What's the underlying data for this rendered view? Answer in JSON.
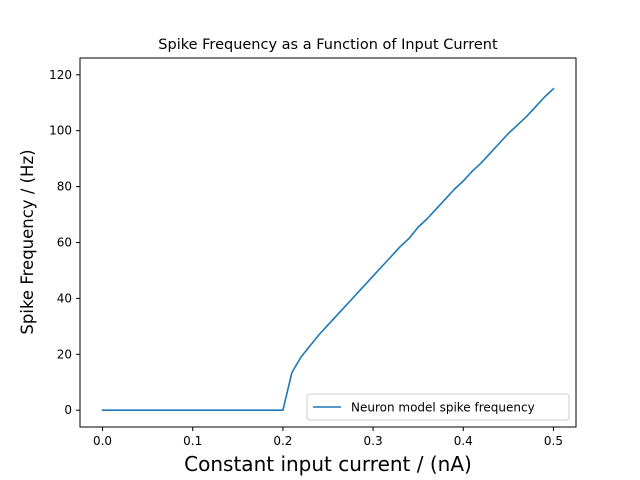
{
  "chart_data": {
    "type": "line",
    "title": "Spike Frequency as a Function of Input Current",
    "xlabel": "Constant input current / (nA)",
    "ylabel": "Spike Frequency / (Hz)",
    "xlim": [
      -0.025,
      0.525
    ],
    "ylim": [
      -6,
      126
    ],
    "xticks": [
      0.0,
      0.1,
      0.2,
      0.3,
      0.4,
      0.5
    ],
    "xtick_labels": [
      "0.0",
      "0.1",
      "0.2",
      "0.3",
      "0.4",
      "0.5"
    ],
    "yticks": [
      0,
      20,
      40,
      60,
      80,
      100,
      120
    ],
    "ytick_labels": [
      "0",
      "20",
      "40",
      "60",
      "80",
      "100",
      "120"
    ],
    "grid": false,
    "legend_position": "lower-right",
    "series": [
      {
        "name": "Neuron model spike frequency",
        "color": "#1f77b4",
        "x": [
          0.0,
          0.01,
          0.02,
          0.03,
          0.04,
          0.05,
          0.06,
          0.07,
          0.08,
          0.09,
          0.1,
          0.11,
          0.12,
          0.13,
          0.14,
          0.15,
          0.16,
          0.17,
          0.18,
          0.19,
          0.2,
          0.21,
          0.22,
          0.23,
          0.24,
          0.25,
          0.26,
          0.27,
          0.28,
          0.29,
          0.3,
          0.31,
          0.32,
          0.33,
          0.34,
          0.35,
          0.36,
          0.37,
          0.38,
          0.39,
          0.4,
          0.41,
          0.42,
          0.43,
          0.44,
          0.45,
          0.46,
          0.47,
          0.48,
          0.49,
          0.5
        ],
        "y": [
          0,
          0,
          0,
          0,
          0,
          0,
          0,
          0,
          0,
          0,
          0,
          0,
          0,
          0,
          0,
          0,
          0,
          0,
          0,
          0,
          0,
          13.5,
          19,
          23,
          27,
          30.5,
          34,
          37.5,
          41,
          44.5,
          48,
          51.5,
          55,
          58.5,
          61.5,
          65.5,
          68.5,
          72,
          75.5,
          79,
          82,
          85.5,
          88.5,
          92,
          95.5,
          99,
          102,
          105,
          108.5,
          112,
          115
        ]
      }
    ]
  }
}
